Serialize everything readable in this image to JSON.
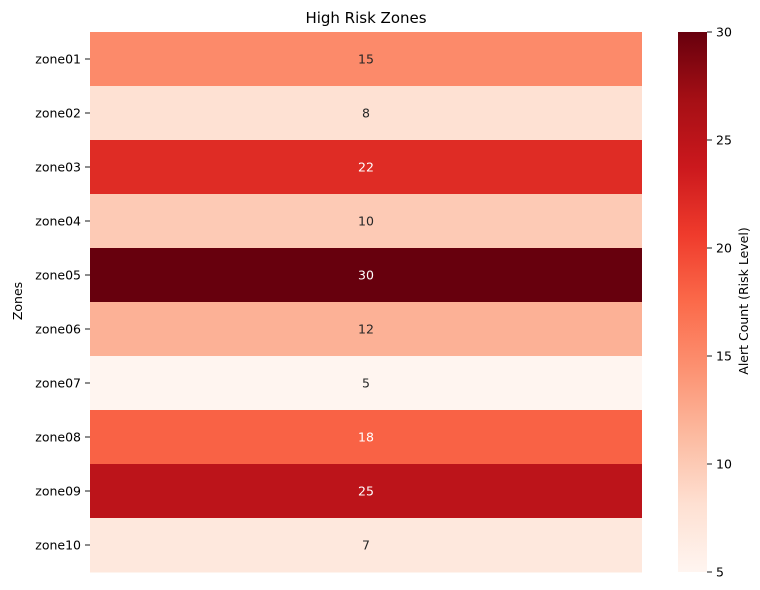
{
  "chart_data": {
    "type": "heatmap",
    "title": "High Risk Zones",
    "ylabel": "Zones",
    "xlabel": "",
    "categories": [
      "zone01",
      "zone02",
      "zone03",
      "zone04",
      "zone05",
      "zone06",
      "zone07",
      "zone08",
      "zone09",
      "zone10"
    ],
    "values": [
      15,
      8,
      22,
      10,
      30,
      12,
      5,
      18,
      25,
      7
    ],
    "colorbar": {
      "label": "Alert Count (Risk Level)",
      "range": [
        5,
        30
      ],
      "ticks": [
        5,
        10,
        15,
        20,
        25,
        30
      ],
      "colormap": "Reds"
    },
    "annotations": true,
    "grid": false
  },
  "colors": {
    "annotation_light_text": "#ffffff",
    "annotation_dark_text": "#262626"
  }
}
